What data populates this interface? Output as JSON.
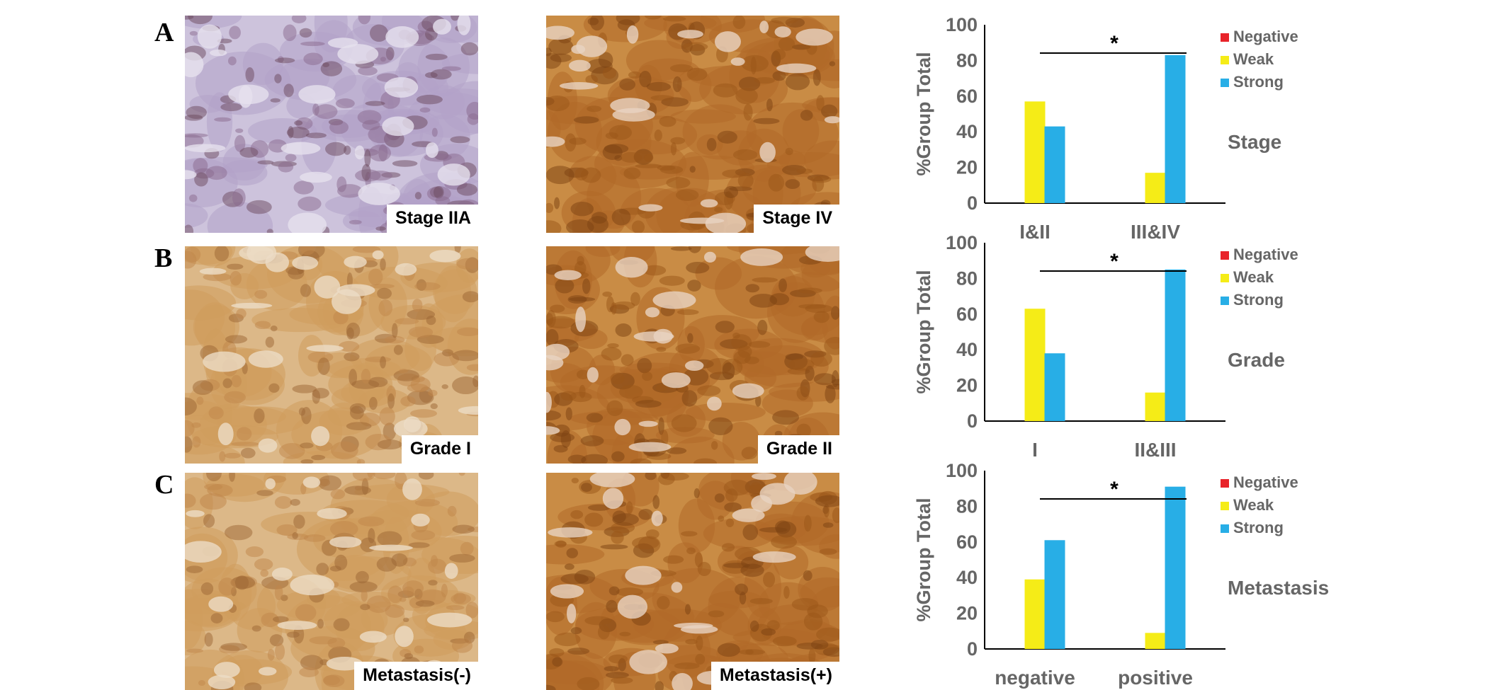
{
  "panel_letters": [
    "A",
    "B",
    "C"
  ],
  "micrographs": [
    {
      "caption": "Stage IIA",
      "tone": "purple"
    },
    {
      "caption": "Stage IV",
      "tone": "brown-dark"
    },
    {
      "caption": "Grade I",
      "tone": "brown-light"
    },
    {
      "caption": "Grade II",
      "tone": "brown-dark"
    },
    {
      "caption": "Metastasis(-)",
      "tone": "brown-light"
    },
    {
      "caption": "Metastasis(+)",
      "tone": "brown-dark"
    }
  ],
  "colors": {
    "negative": "#e8232a",
    "weak": "#f5ec17",
    "strong": "#28aee6",
    "axis": "#000000",
    "text": "#666666"
  },
  "chart_data": [
    {
      "type": "bar",
      "ylabel": "%Group Total",
      "ylim": [
        0,
        100
      ],
      "yticks": [
        "0",
        "20",
        "40",
        "60",
        "80",
        "100"
      ],
      "categories": [
        "I&II",
        "III&IV"
      ],
      "series": [
        {
          "name": "Negative",
          "values": [
            0,
            0
          ]
        },
        {
          "name": "Weak",
          "values": [
            57,
            17
          ]
        },
        {
          "name": "Strong",
          "values": [
            43,
            83
          ]
        }
      ],
      "group_label": "Stage",
      "significance": "*"
    },
    {
      "type": "bar",
      "ylabel": "%Group Total",
      "ylim": [
        0,
        100
      ],
      "yticks": [
        "0",
        "20",
        "40",
        "60",
        "80",
        "100"
      ],
      "categories": [
        "I",
        "II&III"
      ],
      "series": [
        {
          "name": "Negative",
          "values": [
            0,
            0
          ]
        },
        {
          "name": "Weak",
          "values": [
            63,
            16
          ]
        },
        {
          "name": "Strong",
          "values": [
            38,
            85
          ]
        }
      ],
      "group_label": "Grade",
      "significance": "*"
    },
    {
      "type": "bar",
      "ylabel": "%Group Total",
      "ylim": [
        0,
        100
      ],
      "yticks": [
        "0",
        "20",
        "40",
        "60",
        "80",
        "100"
      ],
      "categories": [
        "negative",
        "positive"
      ],
      "series": [
        {
          "name": "Negative",
          "values": [
            0,
            0
          ]
        },
        {
          "name": "Weak",
          "values": [
            39,
            9
          ]
        },
        {
          "name": "Strong",
          "values": [
            61,
            91
          ]
        }
      ],
      "group_label": "Metastasis",
      "significance": "*"
    }
  ]
}
